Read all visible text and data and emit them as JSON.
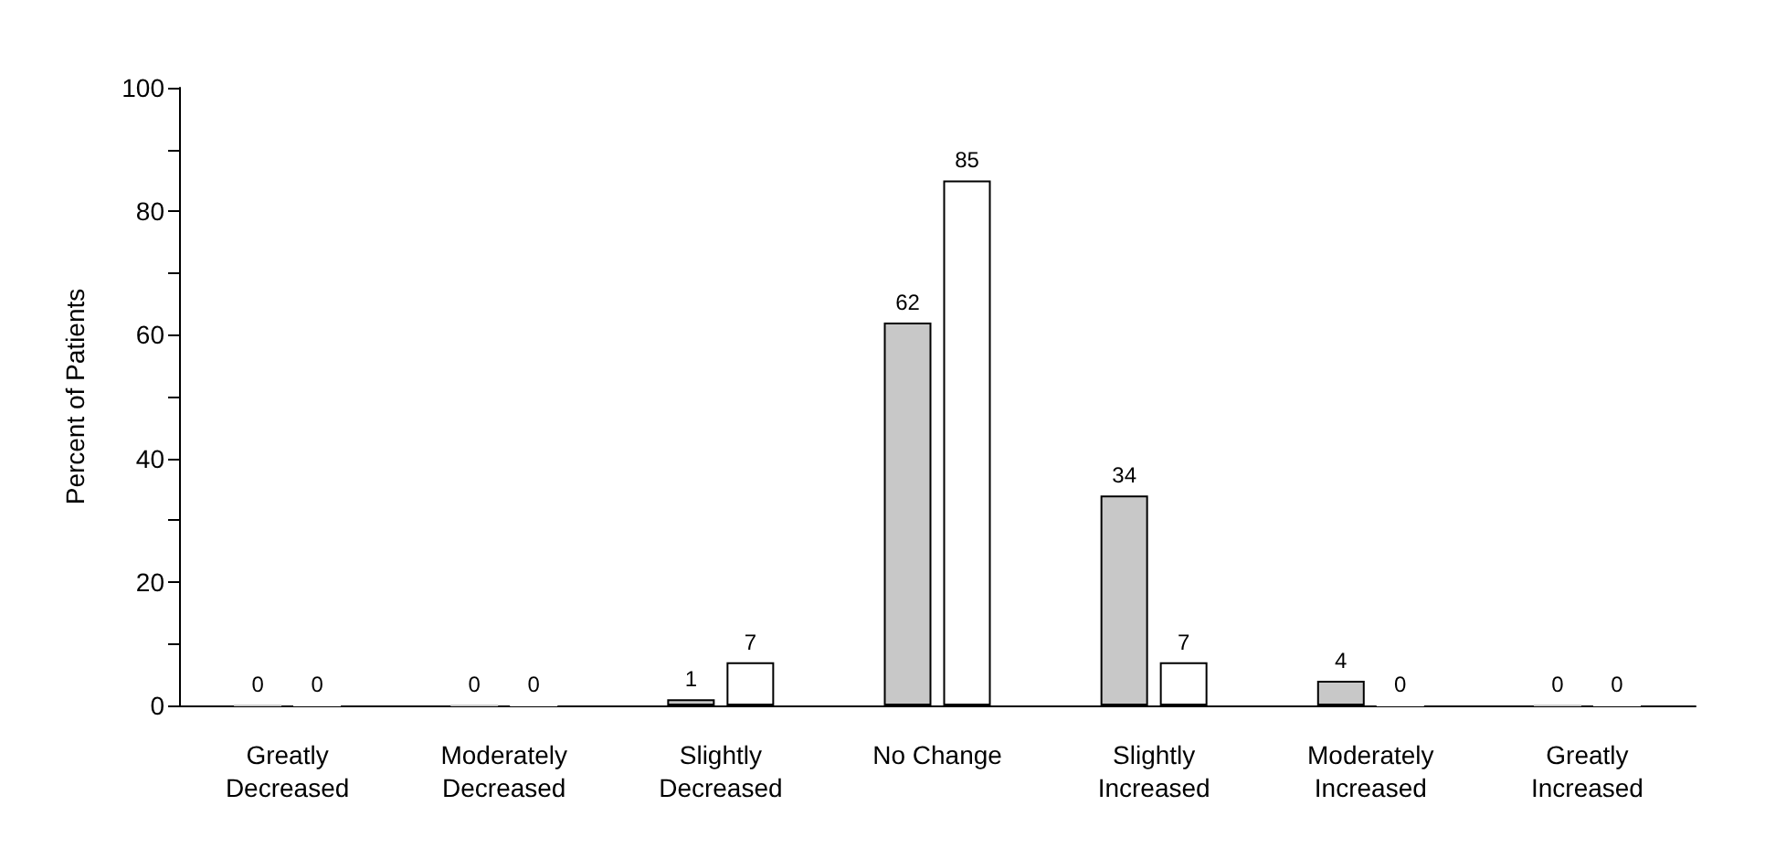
{
  "chart_data": {
    "type": "bar",
    "ylabel": "Percent of Patients",
    "categories": [
      "Greatly\nDecreased",
      "Moderately\nDecreased",
      "Slightly\nDecreased",
      "No Change",
      "Slightly\nIncreased",
      "Moderately\nIncreased",
      "Greatly\nIncreased"
    ],
    "series": [
      {
        "color": "#c8c8c8",
        "values": [
          0,
          0,
          1,
          62,
          34,
          4,
          0
        ]
      },
      {
        "color": "#ffffff",
        "values": [
          0,
          0,
          7,
          85,
          7,
          0,
          0
        ]
      }
    ],
    "ylim": [
      0,
      100
    ],
    "yticks": [
      0,
      {
        "value": 10,
        "label": null
      },
      20,
      {
        "value": 30,
        "label": null
      },
      40,
      {
        "value": 50,
        "label": null
      },
      60,
      {
        "value": 70,
        "label": null
      },
      80,
      {
        "value": 90,
        "label": null
      },
      100
    ],
    "grid": false,
    "data_labels": true
  }
}
